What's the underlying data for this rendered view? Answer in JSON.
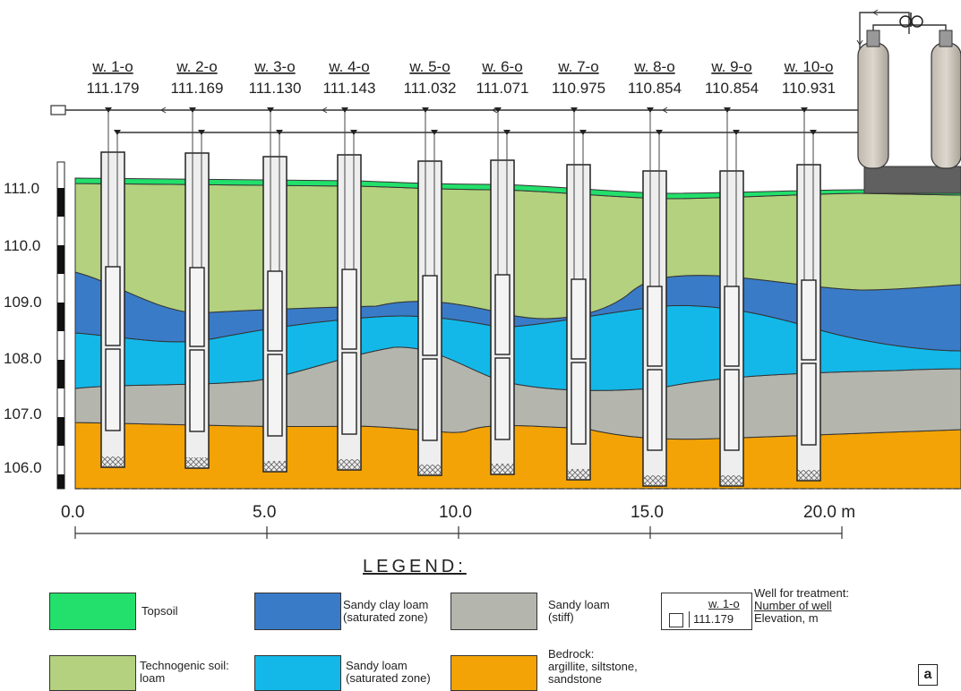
{
  "wells": [
    {
      "name": "w. 1-o",
      "elevation": "111.179"
    },
    {
      "name": "w. 2-o",
      "elevation": "111.169"
    },
    {
      "name": "w. 3-o",
      "elevation": "111.130"
    },
    {
      "name": "w. 4-o",
      "elevation": "111.143"
    },
    {
      "name": "w. 5-o",
      "elevation": "111.032"
    },
    {
      "name": "w. 6-o",
      "elevation": "111.071"
    },
    {
      "name": "w. 7-o",
      "elevation": "110.975"
    },
    {
      "name": "w. 8-o",
      "elevation": "110.854"
    },
    {
      "name": "w. 9-o",
      "elevation": "110.854"
    },
    {
      "name": "w. 10-o",
      "elevation": "110.931"
    }
  ],
  "elevation_axis": [
    "111.0",
    "110.0",
    "109.0",
    "108.0",
    "107.0",
    "106.0"
  ],
  "distance_axis": [
    "0.0",
    "5.0",
    "10.0",
    "15.0",
    "20.0 m"
  ],
  "layer_colors": {
    "topsoil": "#22e06b",
    "technogenic": "#b3d17e",
    "sandy_clay": "#3a7bc8",
    "sandy_loam_sat": "#13b8e8",
    "sandy_loam_stiff": "#b4b6ae",
    "bedrock": "#f3a306"
  },
  "legend": {
    "title": "LEGEND:",
    "topsoil": "Topsoil",
    "technogenic_1": "Technogenic soil:",
    "technogenic_2": "loam",
    "sandy_clay_1": "Sandy clay loam",
    "sandy_clay_2": "(saturated zone)",
    "sandy_loam_sat_1": "Sandy loam",
    "sandy_loam_sat_2": "(saturated zone)",
    "sandy_loam_stiff_1": "Sandy loam",
    "sandy_loam_stiff_2": "(stiff)",
    "bedrock_1": "Bedrock:",
    "bedrock_2": "argillite, siltstone,",
    "bedrock_3": "sandstone",
    "well_sample_name": "w. 1-o",
    "well_sample_elev": "111.179",
    "well_desc_1": "Well for treatment:",
    "well_desc_2": "Number of well",
    "well_desc_3": "Elevation, m"
  },
  "panel_label": "a"
}
